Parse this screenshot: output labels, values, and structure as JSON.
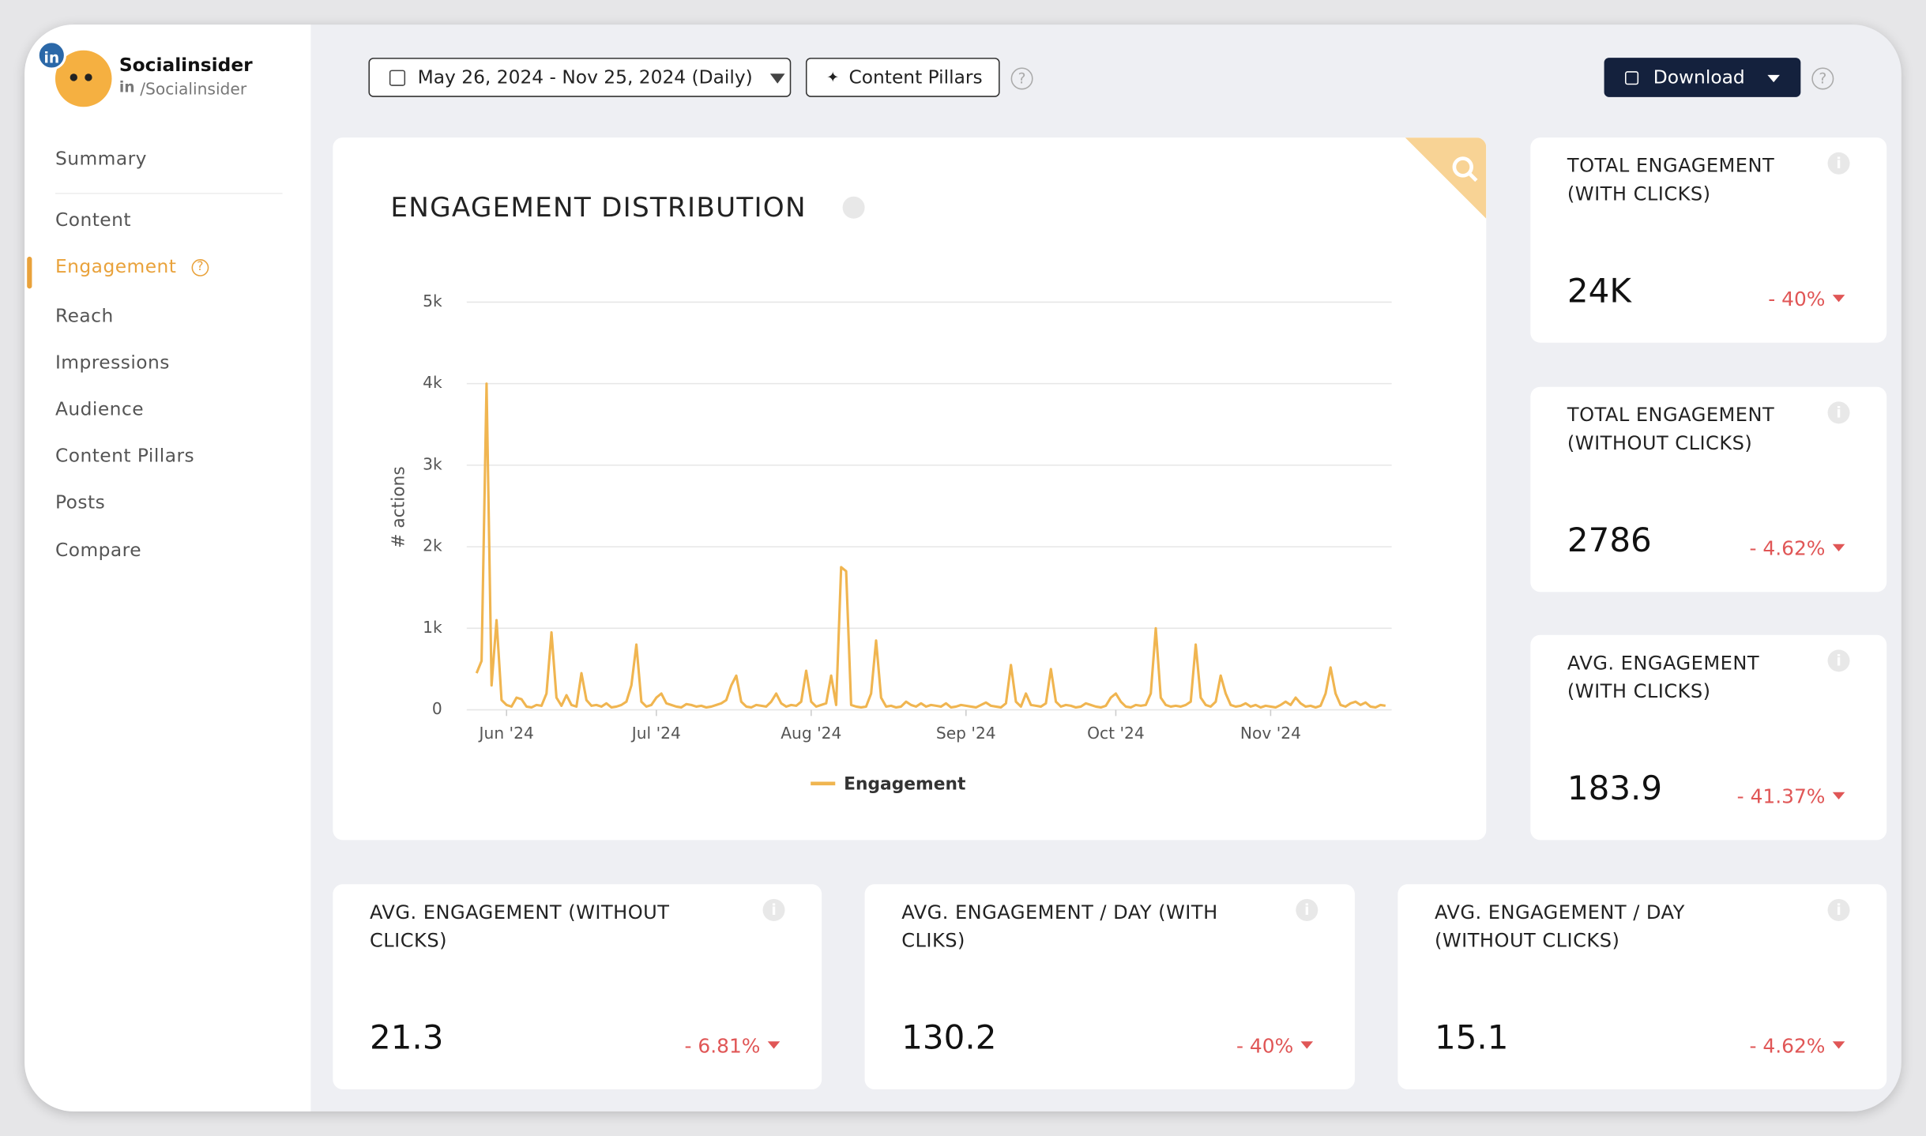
{
  "sidebar": {
    "brand": {
      "name": "Socialinsider",
      "network": "in",
      "handle": "/Socialinsider"
    },
    "nav": [
      "Summary",
      "Content",
      "Engagement",
      "Reach",
      "Impressions",
      "Audience",
      "Content Pillars",
      "Posts",
      "Compare"
    ]
  },
  "toolbar": {
    "date_range": "May 26, 2024 - Nov 25, 2024 (Daily)",
    "pillars": "Content Pillars",
    "download": "Download"
  },
  "chart_data": {
    "type": "line",
    "title": "ENGAGEMENT DISTRIBUTION",
    "y_label": "# actions",
    "series": [
      {
        "name": "Engagement",
        "color": "#f0b550",
        "values": [
          450,
          600,
          4000,
          300,
          1100,
          120,
          60,
          40,
          150,
          130,
          40,
          30,
          60,
          50,
          200,
          950,
          150,
          50,
          180,
          60,
          40,
          450,
          120,
          50,
          60,
          40,
          80,
          30,
          40,
          60,
          100,
          300,
          800,
          100,
          40,
          60,
          150,
          200,
          80,
          60,
          40,
          30,
          70,
          60,
          40,
          50,
          30,
          40,
          60,
          80,
          120,
          300,
          420,
          100,
          40,
          30,
          60,
          50,
          40,
          100,
          200,
          80,
          40,
          60,
          50,
          100,
          480,
          100,
          40,
          60,
          80,
          420,
          60,
          1750,
          1700,
          60,
          40,
          30,
          40,
          200,
          850,
          150,
          40,
          50,
          30,
          40,
          100,
          60,
          40,
          80,
          40,
          60,
          50,
          40,
          80,
          30,
          40,
          60,
          50,
          40,
          30,
          60,
          90,
          50,
          40,
          30,
          80,
          550,
          100,
          40,
          200,
          60,
          50,
          40,
          80,
          500,
          100,
          40,
          60,
          50,
          30,
          40,
          80,
          60,
          40,
          30,
          50,
          150,
          200,
          100,
          40,
          30,
          60,
          50,
          60,
          200,
          1000,
          150,
          60,
          40,
          50,
          40,
          60,
          100,
          800,
          150,
          60,
          40,
          100,
          420,
          200,
          60,
          40,
          50,
          80,
          40,
          60,
          30,
          50,
          40,
          30,
          60,
          100,
          60,
          150,
          80,
          40,
          50,
          30,
          50,
          200,
          520,
          200,
          60,
          40,
          80,
          100,
          60,
          90,
          40,
          30,
          60,
          50
        ]
      }
    ],
    "xlim": [
      0,
      182
    ],
    "xticks": [
      {
        "value": 6,
        "label": "Jun '24"
      },
      {
        "value": 36,
        "label": "Jul '24"
      },
      {
        "value": 67,
        "label": "Aug '24"
      },
      {
        "value": 98,
        "label": "Sep '24"
      },
      {
        "value": 128,
        "label": "Oct '24"
      },
      {
        "value": 159,
        "label": "Nov '24"
      }
    ],
    "ylim": [
      0,
      5000
    ],
    "yticks": [
      0,
      {
        "value": 1000,
        "label": "1k"
      },
      {
        "value": 2000,
        "label": "2k"
      },
      {
        "value": 3000,
        "label": "3k"
      },
      {
        "value": 4000,
        "label": "4k"
      },
      {
        "value": 5000,
        "label": "5k"
      }
    ],
    "grid": true
  },
  "metrics": [
    {
      "title": "TOTAL ENGAGEMENT (WITH CLICKS)",
      "value": "24K",
      "change": "- 40%"
    },
    {
      "title": "TOTAL ENGAGEMENT (WITHOUT CLICKS)",
      "value": "2786",
      "change": "- 4.62%"
    },
    {
      "title": "AVG. ENGAGEMENT (WITH CLICKS)",
      "value": "183.9",
      "change": "- 41.37%"
    },
    {
      "title": "AVG. ENGAGEMENT (WITHOUT CLICKS)",
      "value": "21.3",
      "change": "- 6.81%"
    },
    {
      "title": "AVG. ENGAGEMENT / DAY (WITH CLIKS)",
      "value": "130.2",
      "change": "- 40%"
    },
    {
      "title": "AVG. ENGAGEMENT / DAY (WITHOUT CLICKS)",
      "value": "15.1",
      "change": "- 4.62%"
    }
  ]
}
